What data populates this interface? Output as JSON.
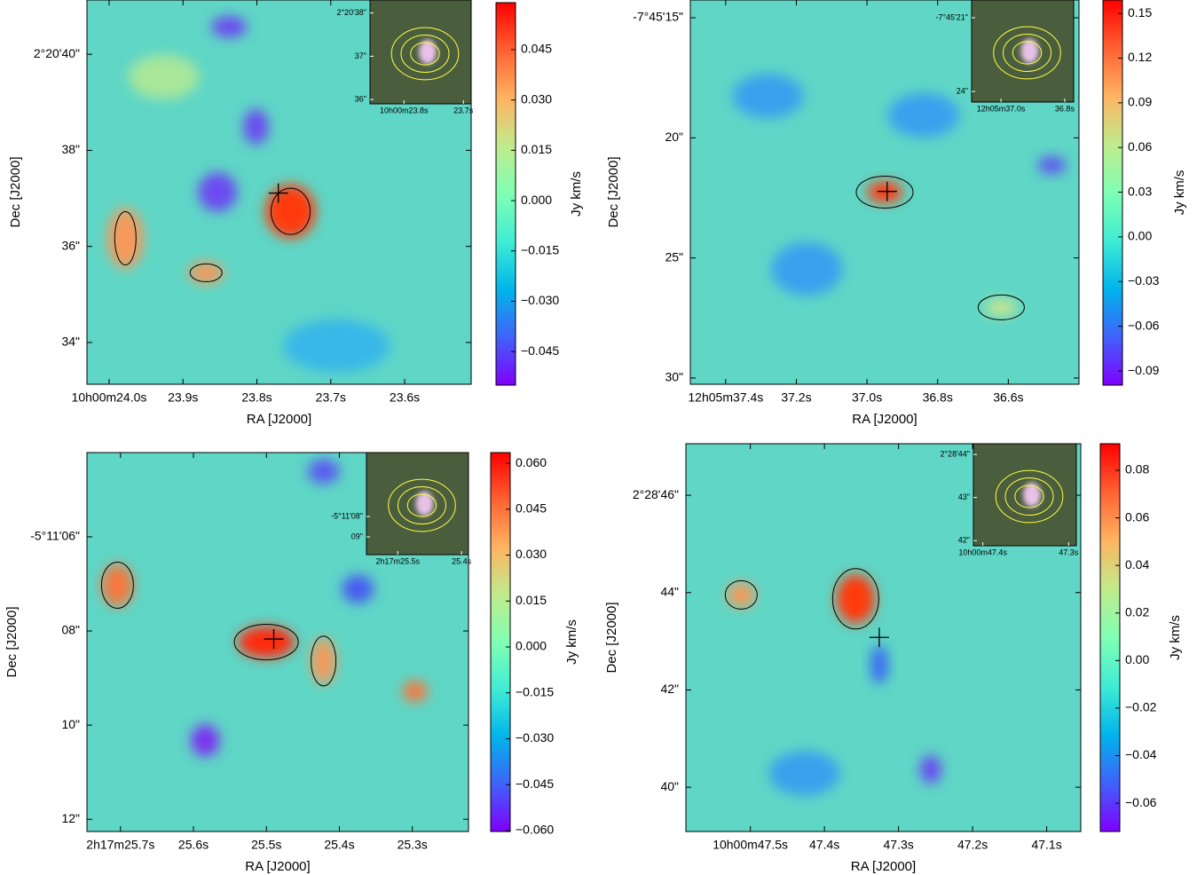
{
  "chart_data": [
    {
      "type": "map",
      "xlabel": "RA [J2000]",
      "ylabel": "Dec [J2000]",
      "xlim": [
        24.03,
        23.51
      ],
      "xticks": [
        {
          "value": 24.0,
          "label": "10h00m24.0s"
        },
        {
          "value": 23.9,
          "label": "23.9s"
        },
        {
          "value": 23.8,
          "label": "23.8s"
        },
        {
          "value": 23.7,
          "label": "23.7s"
        },
        {
          "value": 23.6,
          "label": "23.6s"
        }
      ],
      "ylim": [
        33.13,
        41.13
      ],
      "yticks": [
        {
          "value": 40,
          "label": "2°20'40\""
        },
        {
          "value": 38,
          "label": "38\""
        },
        {
          "value": 36,
          "label": "36\""
        },
        {
          "value": 34,
          "label": "34\""
        }
      ],
      "colorbar": {
        "label": "Jy km/s",
        "lim": [
          -0.055,
          0.059
        ],
        "ticks": [
          0.045,
          {
            "value": 0.03,
            "label": "0.030"
          },
          0.015,
          {
            "value": 0,
            "label": "0.000"
          },
          {
            "value": -0.015,
            "label": "−0.015"
          },
          {
            "value": -0.03,
            "label": "−0.030"
          },
          {
            "value": -0.045,
            "label": "−0.045"
          }
        ]
      },
      "colormap": [
        "#8000ff",
        "#4062fa",
        "#00b5eb",
        "#40ecd4",
        "#80ffb4",
        "#c0eb8d",
        "#ffb462",
        "#ff6232",
        "#ff0000"
      ],
      "marker": {
        "x": 23.771,
        "y": 37.11
      },
      "inset": {
        "xlim": [
          23.857,
          23.687
        ],
        "xticks": [
          {
            "value": 23.8,
            "label": "10h00m23.8s"
          },
          {
            "value": 23.7,
            "label": "23.7s"
          }
        ],
        "ylim": [
          35.9,
          38.3
        ],
        "yticks": [
          {
            "value": 38,
            "label": "2°20'38\""
          },
          {
            "value": 37,
            "label": "37\""
          },
          {
            "value": 36,
            "label": "36\""
          }
        ]
      }
    },
    {
      "type": "map",
      "xlabel": "RA [J2000]",
      "ylabel": "Dec [J2000]",
      "xlim": [
        37.5,
        36.4
      ],
      "xticks": [
        {
          "value": 37.4,
          "label": "12h05m37.4s"
        },
        {
          "value": 37.2,
          "label": "37.2s"
        },
        {
          "value": 37.0,
          "label": "37.0s"
        },
        {
          "value": 36.8,
          "label": "36.8s"
        },
        {
          "value": 36.6,
          "label": "36.6s"
        }
      ],
      "ylim": [
        30.26,
        14.26
      ],
      "yticks": [
        {
          "value": 15,
          "label": "-7°45'15\""
        },
        {
          "value": 20,
          "label": "20\""
        },
        {
          "value": 25,
          "label": "25\""
        },
        {
          "value": 30,
          "label": "30\""
        }
      ],
      "colorbar": {
        "label": "Jy km/s",
        "lim": [
          -0.0995,
          0.159
        ],
        "ticks": [
          0.15,
          0.12,
          0.09,
          0.06,
          0.03,
          {
            "value": 0,
            "label": "0.00"
          },
          {
            "value": -0.03,
            "label": "−0.03"
          },
          {
            "value": -0.06,
            "label": "−0.06"
          },
          {
            "value": -0.09,
            "label": "−0.09"
          }
        ]
      },
      "colormap": [
        "#8000ff",
        "#4062fa",
        "#00b5eb",
        "#40ecd4",
        "#80ffb4",
        "#c0eb8d",
        "#ffb462",
        "#ff6232",
        "#ff0000"
      ],
      "marker": {
        "x": 36.943,
        "y": 22.23
      },
      "inset": {
        "xlim": [
          37.092,
          36.772
        ],
        "xticks": [
          {
            "value": 37.0,
            "label": "12h05m37.0s"
          },
          {
            "value": 36.8,
            "label": "36.8s"
          }
        ],
        "ylim": [
          24.43,
          20.28
        ],
        "yticks": [
          {
            "value": 21,
            "label": "-7°45'21\""
          },
          {
            "value": 24,
            "label": "24\""
          }
        ]
      }
    },
    {
      "type": "map",
      "xlabel": "RA [J2000]",
      "ylabel": "Dec [J2000]",
      "xlim": [
        25.746,
        25.223
      ],
      "xticks": [
        {
          "value": 25.7,
          "label": "2h17m25.7s"
        },
        {
          "value": 25.6,
          "label": "25.6s"
        },
        {
          "value": 25.5,
          "label": "25.5s"
        },
        {
          "value": 25.4,
          "label": "25.4s"
        },
        {
          "value": 25.3,
          "label": "25.3s"
        }
      ],
      "ylim": [
        12.26,
        4.21
      ],
      "yticks": [
        {
          "value": 6,
          "label": "-5°11'06\""
        },
        {
          "value": 8,
          "label": "08\""
        },
        {
          "value": 10,
          "label": "10\""
        },
        {
          "value": 12,
          "label": "12\""
        }
      ],
      "colorbar": {
        "label": "Jy km/s",
        "lim": [
          -0.0603,
          0.0635
        ],
        "ticks": [
          {
            "value": 0.06,
            "label": "0.060"
          },
          0.045,
          {
            "value": 0.03,
            "label": "0.030"
          },
          0.015,
          {
            "value": 0,
            "label": "0.000"
          },
          {
            "value": -0.015,
            "label": "−0.015"
          },
          {
            "value": -0.03,
            "label": "−0.030"
          },
          {
            "value": -0.045,
            "label": "−0.045"
          },
          {
            "value": -0.06,
            "label": "−0.060"
          }
        ]
      },
      "colormap": [
        "#8000ff",
        "#4062fa",
        "#00b5eb",
        "#40ecd4",
        "#80ffb4",
        "#c0eb8d",
        "#ffb462",
        "#ff6232",
        "#ff0000"
      ],
      "marker": {
        "x": 25.49,
        "y": 8.17
      },
      "inset": {
        "xlim": [
          25.549,
          25.389
        ],
        "xticks": [
          {
            "value": 25.5,
            "label": "2h17m25.5s"
          },
          {
            "value": 25.4,
            "label": "25.4s"
          }
        ],
        "ylim": [
          9.87,
          4.87
        ],
        "yticks": [
          {
            "value": 8,
            "label": "-5°11'08\""
          },
          {
            "value": 9,
            "label": "09\""
          }
        ]
      }
    },
    {
      "type": "map",
      "xlabel": "RA [J2000]",
      "ylabel": "Dec [J2000]",
      "xlim": [
        47.587,
        47.054
      ],
      "xticks": [
        {
          "value": 47.5,
          "label": "10h00m47.5s"
        },
        {
          "value": 47.4,
          "label": "47.4s"
        },
        {
          "value": 47.3,
          "label": "47.3s"
        },
        {
          "value": 47.2,
          "label": "47.2s"
        },
        {
          "value": 47.1,
          "label": "47.1s"
        }
      ],
      "ylim": [
        39.09,
        47.06
      ],
      "yticks": [
        {
          "value": 46,
          "label": "2°28'46\""
        },
        {
          "value": 44,
          "label": "44\""
        },
        {
          "value": 42,
          "label": "42\""
        },
        {
          "value": 40,
          "label": "40\""
        }
      ],
      "colorbar": {
        "label": "Jy km/s",
        "lim": [
          -0.0719,
          0.0912
        ],
        "ticks": [
          0.08,
          0.06,
          0.04,
          0.02,
          {
            "value": 0,
            "label": "0.00"
          },
          {
            "value": -0.02,
            "label": "−0.02"
          },
          {
            "value": -0.04,
            "label": "−0.04"
          },
          {
            "value": -0.06,
            "label": "−0.06"
          }
        ]
      },
      "colormap": [
        "#8000ff",
        "#4062fa",
        "#00b5eb",
        "#40ecd4",
        "#80ffb4",
        "#c0eb8d",
        "#ffb462",
        "#ff6232",
        "#ff0000"
      ],
      "marker": {
        "x": 47.326,
        "y": 43.08
      },
      "inset": {
        "xlim": [
          47.411,
          47.291
        ],
        "xticks": [
          {
            "value": 47.4,
            "label": "10h00m47.4s"
          },
          {
            "value": 47.3,
            "label": "47.3s"
          }
        ],
        "ylim": [
          41.88,
          44.25
        ],
        "yticks": [
          {
            "value": 44,
            "label": "2°28'44\""
          },
          {
            "value": 43,
            "label": "43\""
          },
          {
            "value": 42,
            "label": "42\""
          }
        ]
      }
    }
  ]
}
